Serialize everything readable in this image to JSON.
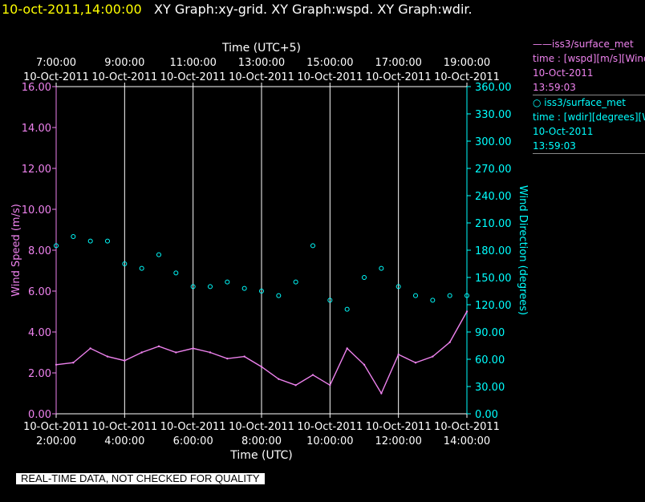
{
  "header": {
    "timestamp": "10-oct-2011,14:00:00",
    "title": "XY Graph:xy-grid.  XY Graph:wspd.  XY Graph:wdir."
  },
  "legend": [
    {
      "line1": "——iss3/surface_met",
      "line2": "time : [wspd][m/s][Wind",
      "line3": "10-Oct-2011",
      "line4": "13:59:03"
    },
    {
      "line1": "○ iss3/surface_met",
      "line2": "time : [wdir][degrees][Wi",
      "line3": "10-Oct-2011",
      "line4": "13:59:03"
    }
  ],
  "quality_note": "REAL-TIME DATA, NOT CHECKED FOR QUALITY",
  "colors": {
    "wspd": "#ee82ee",
    "wdir": "#00ffff",
    "grid": "#ffffff",
    "background": "#000000"
  },
  "chart_data": {
    "type": "line",
    "title": "",
    "x_bottom": {
      "label": "Time (UTC)",
      "range": [
        "10-Oct-2011 2:00:00",
        "10-Oct-2011 14:00:00"
      ],
      "ticks": [
        {
          "date": "10-Oct-2011",
          "time": "2:00:00"
        },
        {
          "date": "10-Oct-2011",
          "time": "4:00:00"
        },
        {
          "date": "10-Oct-2011",
          "time": "6:00:00"
        },
        {
          "date": "10-Oct-2011",
          "time": "8:00:00"
        },
        {
          "date": "10-Oct-2011",
          "time": "10:00:00"
        },
        {
          "date": "10-Oct-2011",
          "time": "12:00:00"
        },
        {
          "date": "10-Oct-2011",
          "time": "14:00:00"
        }
      ]
    },
    "x_top": {
      "label": "Time (UTC+5)",
      "ticks": [
        {
          "time": "7:00:00",
          "date": "10-Oct-2011"
        },
        {
          "time": "9:00:00",
          "date": "10-Oct-2011"
        },
        {
          "time": "11:00:00",
          "date": "10-Oct-2011"
        },
        {
          "time": "13:00:00",
          "date": "10-Oct-2011"
        },
        {
          "time": "15:00:00",
          "date": "10-Oct-2011"
        },
        {
          "time": "17:00:00",
          "date": "10-Oct-2011"
        },
        {
          "time": "19:00:00",
          "date": "10-Oct-2011"
        }
      ]
    },
    "y_left": {
      "label": "Wind Speed (m/s)",
      "range": [
        0,
        16
      ],
      "ticks": [
        "0.00",
        "2.00",
        "4.00",
        "6.00",
        "8.00",
        "10.00",
        "12.00",
        "14.00",
        "16.00"
      ]
    },
    "y_right": {
      "label": "Wind Direction (degrees)",
      "range": [
        0,
        360
      ],
      "ticks": [
        "0.00",
        "30.00",
        "60.00",
        "90.00",
        "120.00",
        "150.00",
        "180.00",
        "210.00",
        "240.00",
        "270.00",
        "300.00",
        "330.00",
        "360.00"
      ]
    },
    "grid": "vertical",
    "series": [
      {
        "name": "iss3/surface_met",
        "quantity": "wspd",
        "axis": "left",
        "style": "line",
        "x": [
          "2:00",
          "2:30",
          "3:00",
          "3:30",
          "4:00",
          "4:30",
          "5:00",
          "5:30",
          "6:00",
          "6:30",
          "7:00",
          "7:30",
          "8:00",
          "8:30",
          "9:00",
          "9:30",
          "10:00",
          "10:30",
          "11:00",
          "11:30",
          "12:00",
          "12:30",
          "13:00",
          "13:30",
          "14:00"
        ],
        "values": [
          2.4,
          2.5,
          3.2,
          2.8,
          2.6,
          3.0,
          3.3,
          3.0,
          3.2,
          3.0,
          2.7,
          2.8,
          2.3,
          1.7,
          1.4,
          1.9,
          1.4,
          3.2,
          2.4,
          1.0,
          2.9,
          2.5,
          2.8,
          3.5,
          5.0
        ]
      },
      {
        "name": "iss3/surface_met",
        "quantity": "wdir",
        "axis": "right",
        "style": "markers",
        "x": [
          "2:00",
          "2:30",
          "3:00",
          "3:30",
          "4:00",
          "4:30",
          "5:00",
          "5:30",
          "6:00",
          "6:30",
          "7:00",
          "7:30",
          "8:00",
          "8:30",
          "9:00",
          "9:30",
          "10:00",
          "10:30",
          "11:00",
          "11:30",
          "12:00",
          "12:30",
          "13:00",
          "13:30",
          "14:00"
        ],
        "values": [
          185,
          195,
          190,
          190,
          165,
          160,
          175,
          155,
          140,
          140,
          145,
          138,
          135,
          130,
          145,
          185,
          125,
          115,
          150,
          160,
          140,
          130,
          125,
          130,
          130
        ]
      }
    ]
  }
}
